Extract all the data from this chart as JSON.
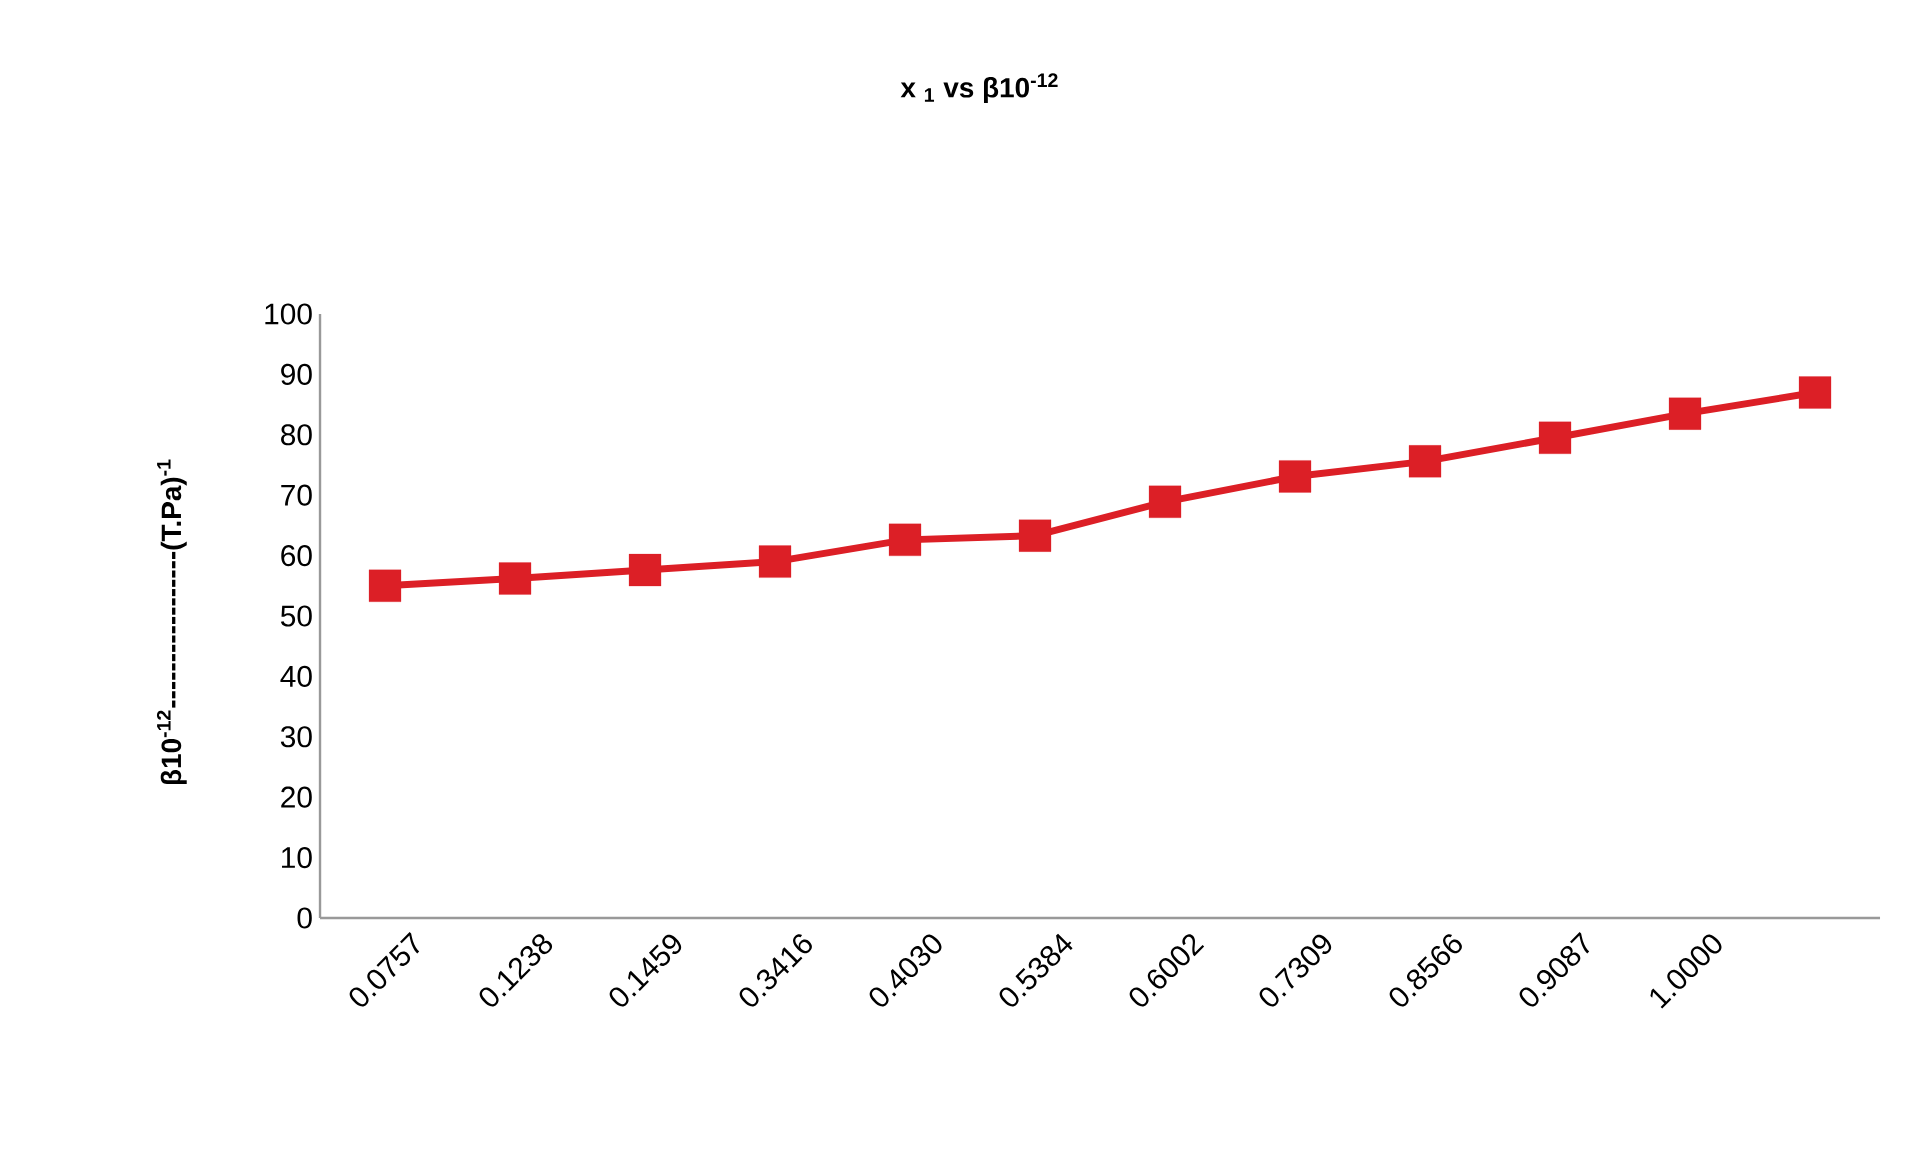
{
  "chart_data": {
    "type": "line",
    "title": "x $_{1}$ vs β10$^{-12}$",
    "ylabel": "β10$^{-12}$-----------------(T.Pa)$^{-1}$",
    "categories": [
      "0.0757",
      "0.1238",
      "0.1459",
      "0.3416",
      "0.4030",
      "0.5384",
      "0.6002",
      "0.7309",
      "0.8566",
      "0.9087",
      "1.0000",
      null
    ],
    "values": [
      55.0,
      56.2,
      57.6,
      59.0,
      62.6,
      63.3,
      68.9,
      73.1,
      75.6,
      79.5,
      83.5,
      87.0
    ],
    "color": "#dc1f26",
    "marker": "square",
    "line_style": "solid",
    "ylim": [
      0,
      100
    ],
    "yticks": [
      0,
      10,
      20,
      30,
      40,
      50,
      60,
      70,
      80,
      90,
      100
    ]
  }
}
